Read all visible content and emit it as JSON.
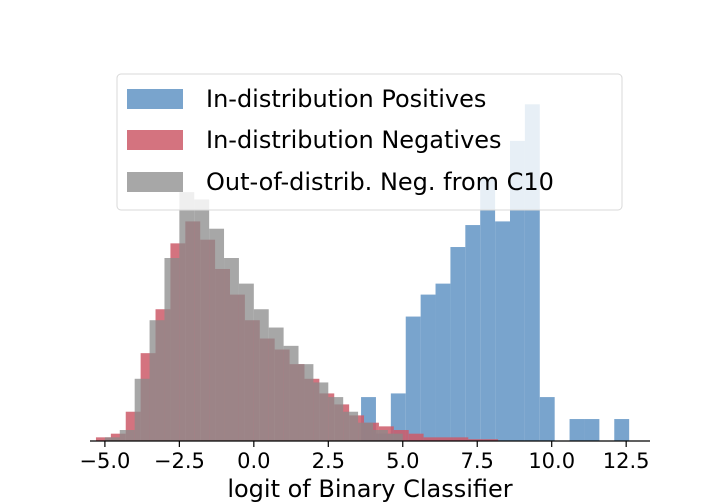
{
  "chart_data": {
    "type": "histogram",
    "title": "",
    "xlabel": "logit of Binary Classifier",
    "ylabel": "",
    "xlim": [
      -5.5,
      13.3
    ],
    "ylim": [
      0,
      100
    ],
    "xticks": [
      -5.0,
      -2.5,
      0.0,
      2.5,
      5.0,
      7.5,
      10.0,
      12.5
    ],
    "xtick_labels": [
      "−5.0",
      "−2.5",
      "0.0",
      "2.5",
      "5.0",
      "7.5",
      "10.0",
      "12.5"
    ],
    "legend_position": "top-center",
    "series": [
      {
        "name": "In-distribution Positives",
        "color": "#6a9ac8",
        "opacity": 0.9,
        "bin_edges": [
          3.6,
          4.1,
          4.6,
          5.1,
          5.6,
          6.1,
          6.6,
          7.1,
          7.6,
          8.1,
          8.6,
          9.1,
          9.6,
          10.1,
          10.6,
          11.1,
          11.6,
          12.1,
          12.6
        ],
        "values": [
          12,
          2,
          13,
          34,
          40,
          43,
          53,
          59,
          72,
          60,
          82,
          92,
          12,
          0,
          6,
          6,
          0,
          6
        ]
      },
      {
        "name": "In-distribution Negatives",
        "color": "#cc5a68",
        "opacity": 0.85,
        "bin_edges": [
          -5.3,
          -4.8,
          -4.3,
          -3.8,
          -3.3,
          -2.8,
          -2.3,
          -1.8,
          -1.3,
          -0.8,
          -0.3,
          0.2,
          0.7,
          1.2,
          1.7,
          2.2,
          2.7,
          3.2,
          3.7,
          4.2,
          4.7,
          5.2,
          5.7,
          6.2,
          6.7,
          7.2,
          7.7,
          8.2
        ],
        "values": [
          1,
          2,
          8,
          24,
          36,
          54,
          60,
          55,
          47,
          40,
          33,
          28,
          25,
          21,
          17,
          13,
          10,
          7,
          5,
          4,
          3,
          2,
          1,
          1,
          1,
          0.5,
          0.5
        ]
      },
      {
        "name": "Out-of-distrib. Neg. from C10",
        "color": "#8a8a8a",
        "opacity": 0.75,
        "bin_edges": [
          -5.0,
          -4.5,
          -4.0,
          -3.5,
          -3.0,
          -2.5,
          -2.0,
          -1.5,
          -1.0,
          -0.5,
          0.0,
          0.5,
          1.0,
          1.5,
          2.0,
          2.5,
          3.0,
          3.5,
          4.0,
          4.5,
          5.0
        ],
        "values": [
          1,
          3,
          17,
          33,
          50,
          68,
          66,
          58,
          50,
          43,
          36,
          31,
          26,
          21,
          16,
          12,
          8,
          5,
          3,
          2
        ]
      }
    ]
  }
}
